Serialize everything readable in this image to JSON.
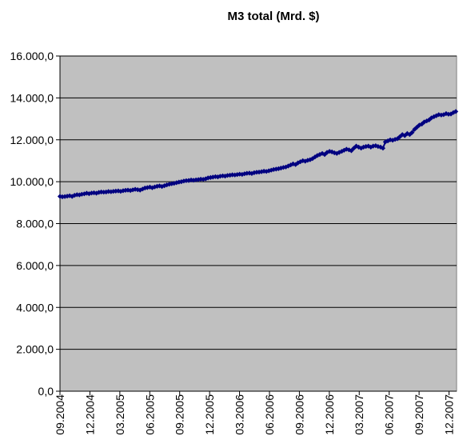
{
  "chart_data": {
    "type": "line",
    "title": "M3 total (Mrd. $)",
    "xlabel": "",
    "ylabel": "",
    "ylim": [
      0,
      16000
    ],
    "y_ticks": [
      0,
      2000,
      4000,
      6000,
      8000,
      10000,
      12000,
      14000,
      16000
    ],
    "y_tick_labels": [
      "0,0",
      "2.000,0",
      "4.000,0",
      "6.000,0",
      "8.000,0",
      "10.000,0",
      "12.000,0",
      "14.000,0",
      "16.000,0"
    ],
    "x_tick_labels": [
      "09.2004",
      "12.2004",
      "03.2005",
      "06.2005",
      "09.2005",
      "12.2005",
      "03.2006",
      "06.2006",
      "09.2006",
      "12.2006",
      "03.2007",
      "06.2007",
      "09.2007",
      "12.2007"
    ],
    "grid": true,
    "legend": "none",
    "colors": {
      "series": "#000080",
      "plot_background": "#c0c0c0",
      "gridline": "#000000"
    },
    "series": [
      {
        "values": [
          9300,
          9280,
          9290,
          9310,
          9330,
          9300,
          9350,
          9380,
          9370,
          9400,
          9420,
          9450,
          9430,
          9460,
          9470,
          9450,
          9490,
          9510,
          9500,
          9510,
          9530,
          9520,
          9540,
          9550,
          9560,
          9540,
          9570,
          9590,
          9600,
          9580,
          9610,
          9640,
          9620,
          9600,
          9650,
          9700,
          9720,
          9740,
          9710,
          9750,
          9780,
          9800,
          9770,
          9810,
          9850,
          9880,
          9900,
          9920,
          9950,
          9980,
          10000,
          10030,
          10050,
          10060,
          10080,
          10070,
          10090,
          10100,
          10120,
          10110,
          10140,
          10180,
          10200,
          10220,
          10240,
          10230,
          10260,
          10280,
          10270,
          10300,
          10310,
          10330,
          10320,
          10340,
          10360,
          10350,
          10380,
          10400,
          10410,
          10390,
          10430,
          10450,
          10460,
          10480,
          10500,
          10490,
          10520,
          10550,
          10580,
          10600,
          10620,
          10650,
          10680,
          10700,
          10750,
          10800,
          10850,
          10820,
          10900,
          10950,
          11000,
          10980,
          11020,
          11050,
          11100,
          11180,
          11250,
          11300,
          11350,
          11300,
          11400,
          11450,
          11420,
          11380,
          11350,
          11400,
          11450,
          11500,
          11550,
          11520,
          11480,
          11600,
          11700,
          11650,
          11600,
          11650,
          11680,
          11700,
          11650,
          11700,
          11720,
          11680,
          11650,
          11600,
          11900,
          11950,
          12000,
          11980,
          12020,
          12050,
          12150,
          12250,
          12200,
          12300,
          12250,
          12350,
          12500,
          12600,
          12700,
          12750,
          12850,
          12900,
          12950,
          13050,
          13100,
          13150,
          13200,
          13180,
          13200,
          13250,
          13220,
          13230,
          13300,
          13350
        ]
      }
    ]
  }
}
